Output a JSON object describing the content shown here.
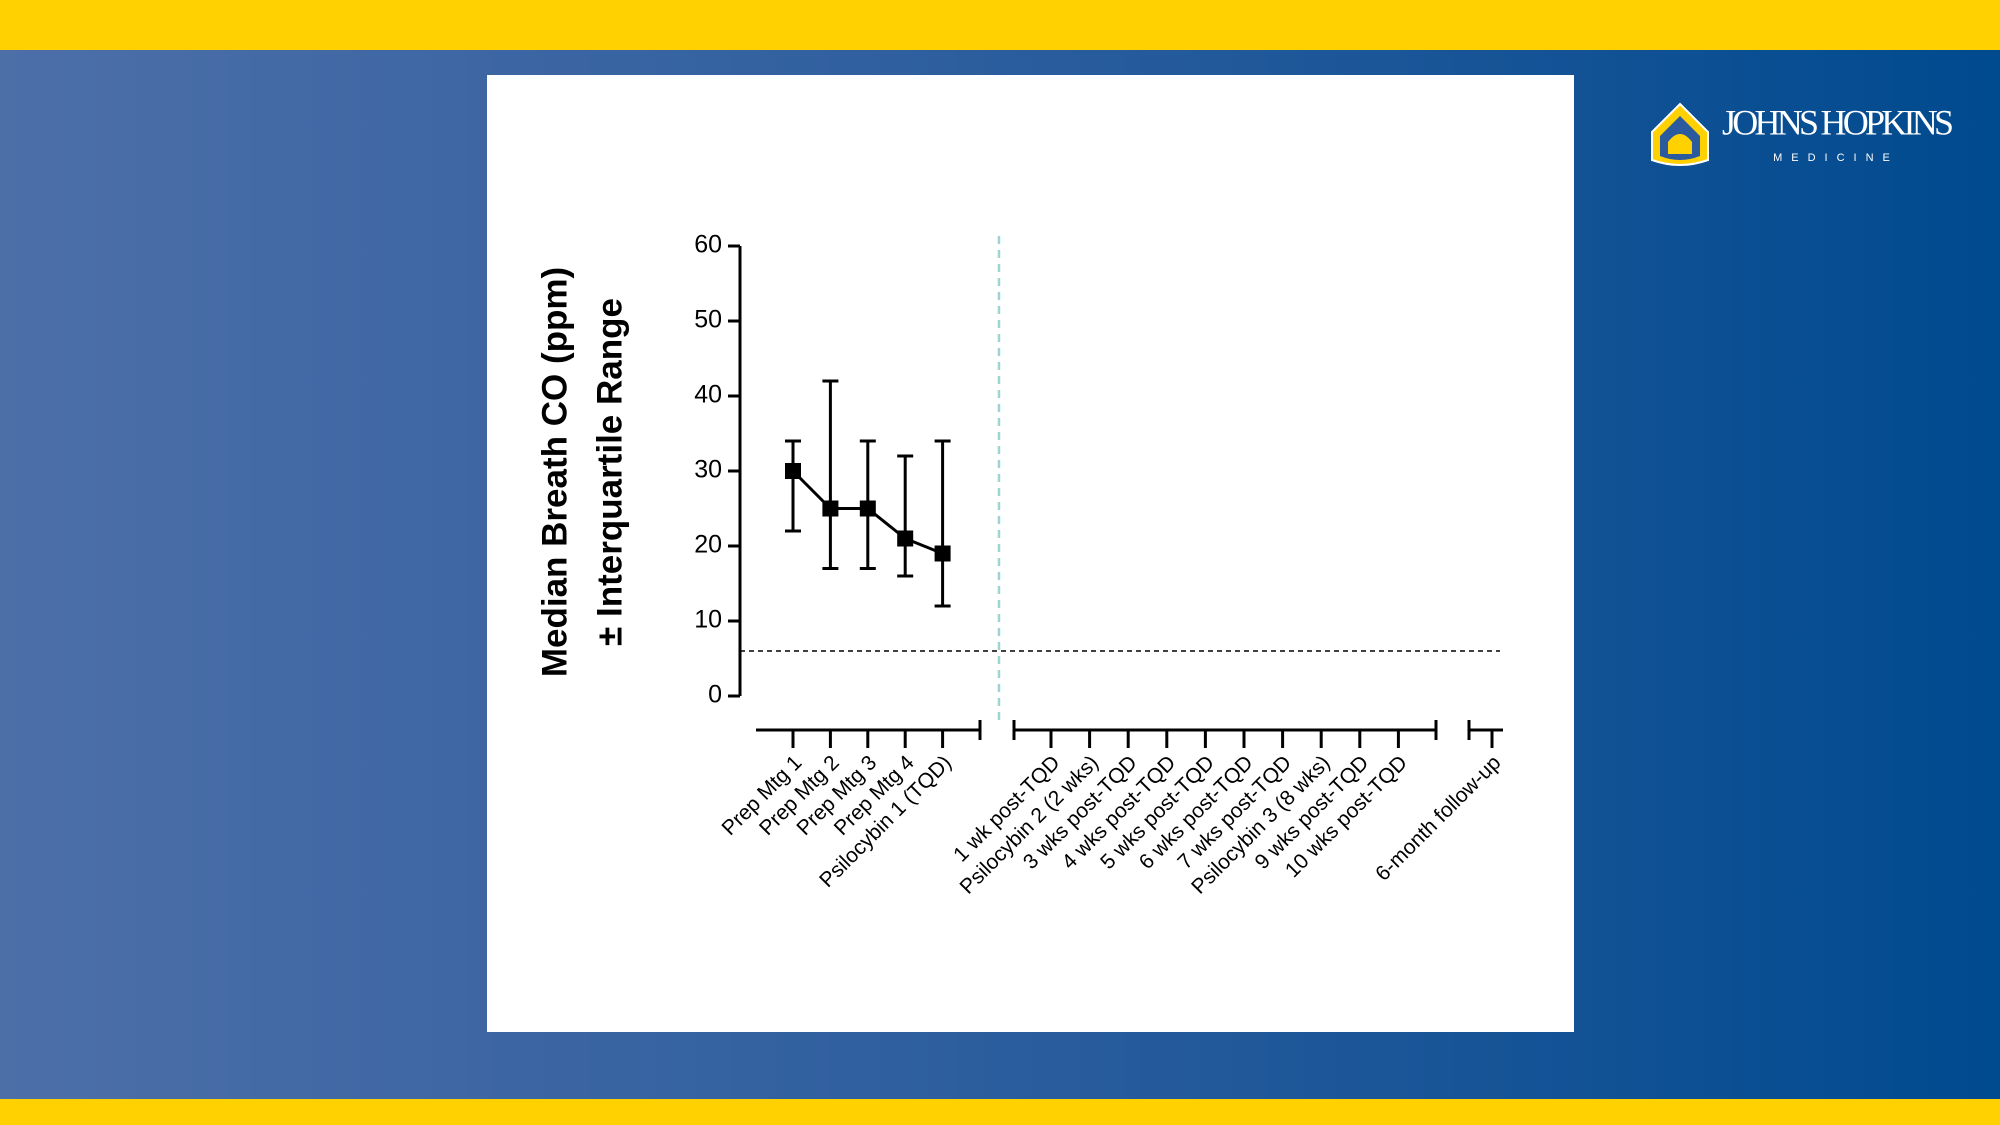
{
  "logo": {
    "name": "JOHNS HOPKINS",
    "subtitle": "MEDICINE"
  },
  "chart_data": {
    "type": "line",
    "ylabel": [
      "Median Breath CO (ppm)",
      "± Interquartile Range"
    ],
    "categories": [
      "Prep Mtg 1",
      "Prep Mtg 2",
      "Prep Mtg 3",
      "Prep Mtg 4",
      "Psilocybin 1 (TQD)",
      "1 wk post-TQD",
      "Psilocybin 2 (2 wks)",
      "3 wks post-TQD",
      "4 wks post-TQD",
      "5 wks post-TQD",
      "6 wks post-TQD",
      "7 wks post-TQD",
      "Psilocybin 3 (8 wks)",
      "9 wks post-TQD",
      "10 wks post-TQD",
      "6-month follow-up"
    ],
    "series": [
      {
        "color": "#000000",
        "values": [
          30,
          25,
          25,
          21,
          19,
          null,
          null,
          null,
          null,
          null,
          null,
          null,
          null,
          null,
          null,
          null
        ],
        "lower": [
          22,
          17,
          17,
          16,
          12,
          null,
          null,
          null,
          null,
          null,
          null,
          null,
          null,
          null,
          null,
          null
        ],
        "upper": [
          34,
          42,
          34,
          32,
          34,
          null,
          null,
          null,
          null,
          null,
          null,
          null,
          null,
          null,
          null,
          null
        ]
      }
    ],
    "reference_line": 6,
    "ylim": [
      0,
      60
    ],
    "yticks": [
      0,
      10,
      20,
      30,
      40,
      50,
      60
    ]
  }
}
